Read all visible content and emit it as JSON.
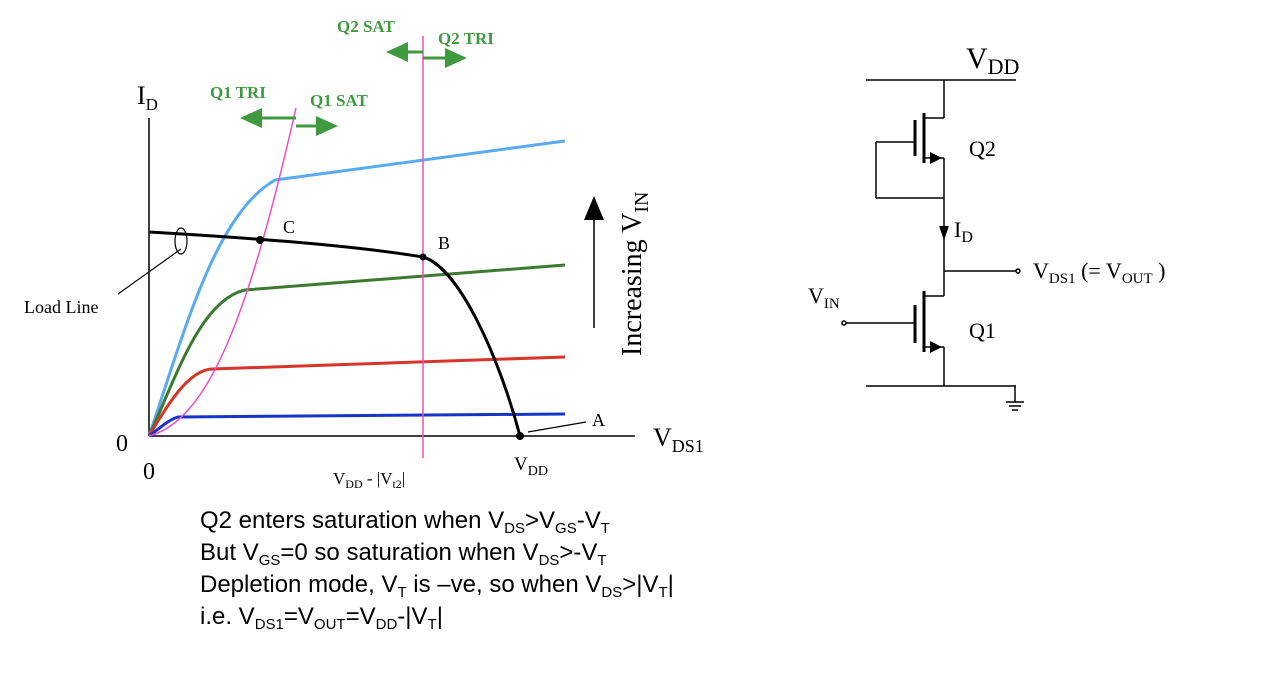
{
  "plot": {
    "y_axis_label": "I",
    "y_axis_sub": "D",
    "x_axis_label": "V",
    "x_axis_sub": "DS1",
    "origin_y": "0",
    "origin_x": "0",
    "tick_vdd_vt2": {
      "a": "V",
      "a_sub": "DD",
      "b": " - |V",
      "b_sub": "t2",
      "c": "|"
    },
    "tick_vdd": {
      "a": "V",
      "a_sub": "DD"
    },
    "q1_tri": "Q1 TRI",
    "q1_sat": "Q1 SAT",
    "q2_sat": "Q2 SAT",
    "q2_tri": "Q2 TRI",
    "increasing": "Increasing V",
    "increasing_sub": "IN",
    "load_line": "Load Line",
    "point_a": "A",
    "point_b": "B",
    "point_c": "C",
    "colors": {
      "curve_top": "#5aaaf0",
      "curve_2": "#3c7a30",
      "curve_3": "#d8352a",
      "curve_4": "#1535c8",
      "boundary": "#e84fc8",
      "load_line": "#000000",
      "label_green": "#3f9a3f"
    }
  },
  "circuit": {
    "vdd": "V",
    "vdd_sub": "DD",
    "q2": "Q2",
    "q1": "Q1",
    "id": "I",
    "id_sub": "D",
    "vin": "V",
    "vin_sub": "IN",
    "vout_a": "V",
    "vout_a_sub": "DS1",
    "vout_b": " (= V",
    "vout_b_sub": "OUT",
    "vout_c": " )"
  },
  "notes": [
    [
      {
        "t": "Q2 enters saturation when V"
      },
      {
        "s": "DS"
      },
      {
        "t": ">V"
      },
      {
        "s": "GS"
      },
      {
        "t": "-V"
      },
      {
        "s": "T"
      }
    ],
    [
      {
        "t": "But V"
      },
      {
        "s": "GS"
      },
      {
        "t": "=0 so saturation when V"
      },
      {
        "s": "DS"
      },
      {
        "t": ">-V"
      },
      {
        "s": "T"
      }
    ],
    [
      {
        "t": "Depletion mode, V"
      },
      {
        "s": "T"
      },
      {
        "t": " is –ve, so when V"
      },
      {
        "s": "DS"
      },
      {
        "t": ">|V"
      },
      {
        "s": "T"
      },
      {
        "t": "|"
      }
    ],
    [
      {
        "t": "i.e. V"
      },
      {
        "s": "DS1"
      },
      {
        "t": "=V"
      },
      {
        "s": "OUT"
      },
      {
        "t": "=V"
      },
      {
        "s": "DD"
      },
      {
        "t": "-|V"
      },
      {
        "s": "T"
      },
      {
        "t": "|"
      }
    ]
  ]
}
